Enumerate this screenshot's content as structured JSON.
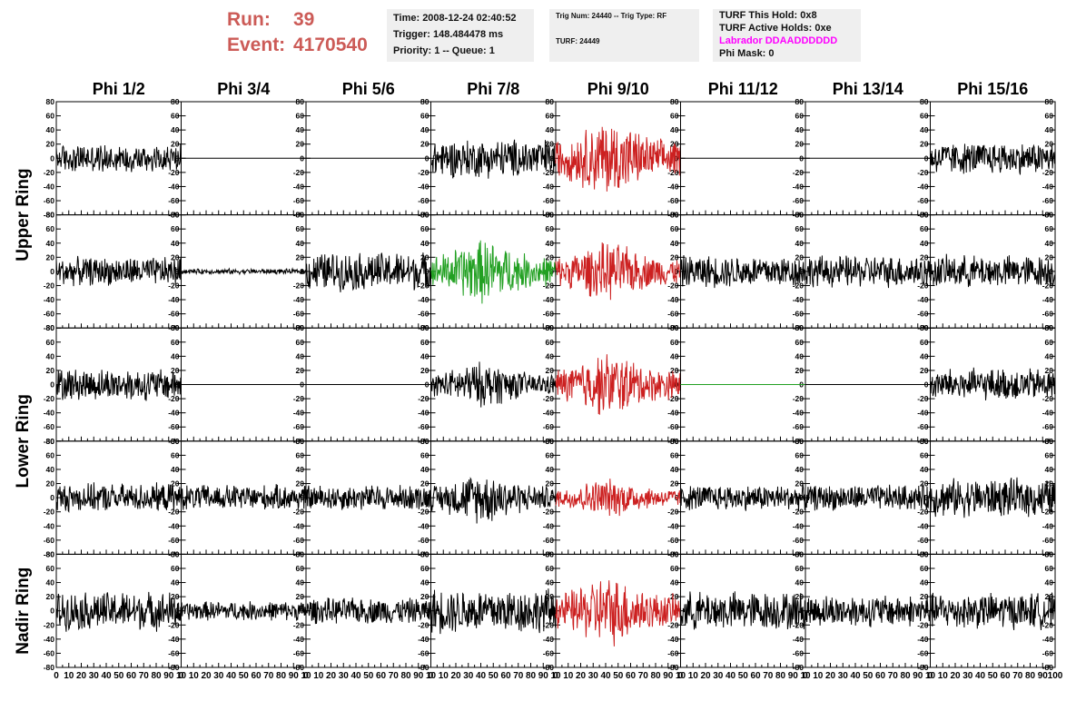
{
  "header": {
    "run_label": "Run:",
    "run_value": "39",
    "event_label": "Event:",
    "event_value": "4170540",
    "time": "Time: 2008-12-24 02:40:52",
    "trigger": "Trigger: 148.484478 ms",
    "priority": "Priority: 1 -- Queue: 1",
    "trig_num": "Trig Num: 24440 -- Trig Type: RF",
    "turf": "TURF: 24449",
    "turf_this_hold": "TURF This Hold: 0x8",
    "turf_active_holds": "TURF Active Holds: 0xe",
    "labrador": "Labrador DDAADDDDDD",
    "phi_mask": "Phi Mask: 0"
  },
  "colors": {
    "run_text": "#cc5b57",
    "labrador_text": "#ff00ff",
    "trace_default": "#000000",
    "trace_red": "#cc2020",
    "trace_green": "#22a022",
    "panel_bg": "#efefef"
  },
  "chart_data": {
    "type": "line",
    "columns": [
      "Phi 1/2",
      "Phi 3/4",
      "Phi 5/6",
      "Phi 7/8",
      "Phi 9/10",
      "Phi 11/12",
      "Phi 13/14",
      "Phi 15/16"
    ],
    "ring_labels": [
      "Upper Ring",
      "Lower Ring",
      "Nadir Ring"
    ],
    "rows_per_ring": [
      2,
      2,
      1
    ],
    "ylim": [
      -80,
      80
    ],
    "y_ticks": [
      80,
      60,
      40,
      20,
      0,
      -20,
      -40,
      -60,
      -80
    ],
    "xlim": [
      0,
      100
    ],
    "x_ticks": [
      0,
      10,
      20,
      30,
      40,
      50,
      60,
      70,
      80,
      90,
      100
    ],
    "x_tick_labels_rendered": [
      "0",
      "10",
      "20",
      "30",
      "40",
      "50",
      "60",
      "70",
      "80",
      "90",
      "10"
    ],
    "x_tick_labels_last_column": [
      "0",
      "10",
      "20",
      "30",
      "40",
      "50",
      "60",
      "70",
      "80",
      "90",
      "100"
    ],
    "traces": [
      [
        {
          "amp": 22,
          "color": "black",
          "env": "flat"
        },
        {
          "amp": 0,
          "color": "black",
          "env": "flat"
        },
        {
          "amp": 0,
          "color": "black",
          "env": "flat"
        },
        {
          "amp": 30,
          "color": "black",
          "env": "flat"
        },
        {
          "amp": 60,
          "color": "red",
          "env": "burst"
        },
        {
          "amp": 0,
          "color": "black",
          "env": "flat"
        },
        {
          "amp": 0,
          "color": "black",
          "env": "flat"
        },
        {
          "amp": 25,
          "color": "black",
          "env": "flat"
        }
      ],
      [
        {
          "amp": 22,
          "color": "black",
          "env": "flat"
        },
        {
          "amp": 4,
          "color": "black",
          "env": "flat"
        },
        {
          "amp": 30,
          "color": "black",
          "env": "flat"
        },
        {
          "amp": 50,
          "color": "green",
          "env": "burst"
        },
        {
          "amp": 45,
          "color": "red",
          "env": "burst"
        },
        {
          "amp": 25,
          "color": "black",
          "env": "flat"
        },
        {
          "amp": 25,
          "color": "black",
          "env": "flat"
        },
        {
          "amp": 25,
          "color": "black",
          "env": "flat"
        }
      ],
      [
        {
          "amp": 25,
          "color": "black",
          "env": "flat"
        },
        {
          "amp": 0,
          "color": "black",
          "env": "flat"
        },
        {
          "amp": 0,
          "color": "black",
          "env": "flat"
        },
        {
          "amp": 35,
          "color": "black",
          "env": "burst"
        },
        {
          "amp": 50,
          "color": "red",
          "env": "burst"
        },
        {
          "amp": 0,
          "color": "green",
          "env": "flat"
        },
        {
          "amp": 0,
          "color": "black",
          "env": "flat"
        },
        {
          "amp": 25,
          "color": "black",
          "env": "flat"
        }
      ],
      [
        {
          "amp": 22,
          "color": "black",
          "env": "flat"
        },
        {
          "amp": 20,
          "color": "black",
          "env": "flat"
        },
        {
          "amp": 20,
          "color": "black",
          "env": "flat"
        },
        {
          "amp": 40,
          "color": "black",
          "env": "burst"
        },
        {
          "amp": 30,
          "color": "red",
          "env": "burst"
        },
        {
          "amp": 20,
          "color": "black",
          "env": "flat"
        },
        {
          "amp": 20,
          "color": "black",
          "env": "flat"
        },
        {
          "amp": 30,
          "color": "black",
          "env": "flat"
        }
      ],
      [
        {
          "amp": 30,
          "color": "black",
          "env": "flat"
        },
        {
          "amp": 15,
          "color": "black",
          "env": "flat"
        },
        {
          "amp": 20,
          "color": "black",
          "env": "flat"
        },
        {
          "amp": 35,
          "color": "black",
          "env": "flat"
        },
        {
          "amp": 55,
          "color": "red",
          "env": "burst"
        },
        {
          "amp": 30,
          "color": "black",
          "env": "flat"
        },
        {
          "amp": 25,
          "color": "black",
          "env": "flat"
        },
        {
          "amp": 28,
          "color": "black",
          "env": "flat"
        }
      ]
    ]
  }
}
